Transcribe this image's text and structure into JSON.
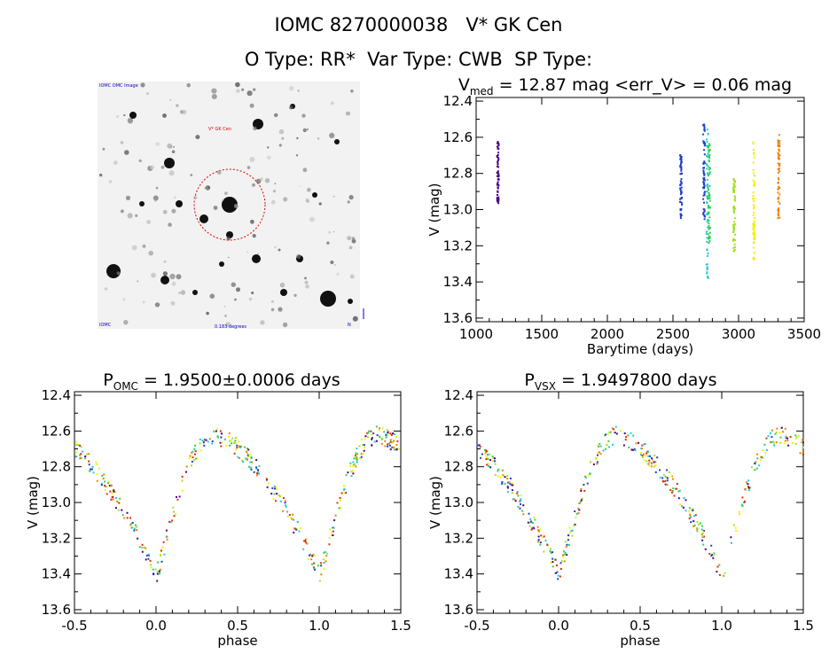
{
  "header": {
    "title": "IOMC 8270000038   V* GK Cen",
    "subtitle": "O Type: RR*  Var Type: CWB  SP Type:"
  },
  "image_panel": {
    "label_top_left": "IOMC OMC Image",
    "label_center": "V* GK Cen",
    "label_bottom_left": "IOMC",
    "label_bottom_center": "0.183 degrees",
    "label_bottom_right": "N"
  },
  "colors": {
    "purple": "#4b0082",
    "blue": "#1e40c8",
    "cyan": "#20c8d8",
    "green": "#30d050",
    "lime": "#a0e020",
    "yellow": "#f0f000",
    "orange": "#f08000",
    "red": "#e03000"
  },
  "chart_data": [
    {
      "type": "scatter",
      "id": "light-curve",
      "title_prefix": "V",
      "title_sub": "med",
      "title_rest": " = 12.87 mag <err_V> = 0.06 mag",
      "xlabel": "Barytime (days)",
      "ylabel": "V (mag)",
      "xlim": [
        1000,
        3500
      ],
      "ylim": [
        13.62,
        12.38
      ],
      "xticks": [
        "1000",
        "1500",
        "2000",
        "2500",
        "3000",
        "3500"
      ],
      "yticks": [
        "12.4",
        "12.6",
        "12.8",
        "13.0",
        "13.2",
        "13.4",
        "13.6"
      ],
      "series": [
        {
          "name": "s1",
          "color": "purple",
          "x": 1160,
          "ymin": 12.62,
          "ymax": 12.97
        },
        {
          "name": "s2",
          "color": "blue",
          "x": 2555,
          "ymin": 12.69,
          "ymax": 13.05
        },
        {
          "name": "s3",
          "color": "blue",
          "x": 2730,
          "ymin": 12.52,
          "ymax": 13.05
        },
        {
          "name": "s4",
          "color": "cyan",
          "x": 2755,
          "ymin": 12.55,
          "ymax": 13.4
        },
        {
          "name": "s5",
          "color": "green",
          "x": 2770,
          "ymin": 12.62,
          "ymax": 13.2
        },
        {
          "name": "s6",
          "color": "lime",
          "x": 2960,
          "ymin": 12.82,
          "ymax": 13.23
        },
        {
          "name": "s7",
          "color": "yellow",
          "x": 3110,
          "ymin": 12.62,
          "ymax": 13.27
        },
        {
          "name": "s8",
          "color": "orange",
          "x": 3300,
          "ymin": 12.56,
          "ymax": 13.05
        }
      ]
    },
    {
      "type": "scatter",
      "id": "phase-omc",
      "title_prefix": "P",
      "title_sub": "OMC",
      "title_rest": " = 1.9500±0.0006 days",
      "xlabel": "phase",
      "ylabel": "V (mag)",
      "xlim": [
        -0.5,
        1.5
      ],
      "ylim": [
        13.62,
        12.38
      ],
      "xticks": [
        "-0.5",
        "0.0",
        "0.5",
        "1.0",
        "1.5"
      ],
      "yticks": [
        "12.4",
        "12.6",
        "12.8",
        "13.0",
        "13.2",
        "13.4",
        "13.6"
      ],
      "max_mag": 12.62,
      "min_mag": 13.4,
      "min_phase": 0.0,
      "max_phase": 0.35
    },
    {
      "type": "scatter",
      "id": "phase-vsx",
      "title_prefix": "P",
      "title_sub": "VSX",
      "title_rest": " = 1.9497800 days",
      "xlabel": "phase",
      "ylabel": "V (mag)",
      "xlim": [
        -0.5,
        1.5
      ],
      "ylim": [
        13.62,
        12.38
      ],
      "xticks": [
        "-0.5",
        "0.0",
        "0.5",
        "1.0",
        "1.5"
      ],
      "yticks": [
        "12.4",
        "12.6",
        "12.8",
        "13.0",
        "13.2",
        "13.4",
        "13.6"
      ],
      "max_mag": 12.62,
      "min_mag": 13.4,
      "min_phase": 0.0,
      "max_phase": 0.35
    }
  ]
}
